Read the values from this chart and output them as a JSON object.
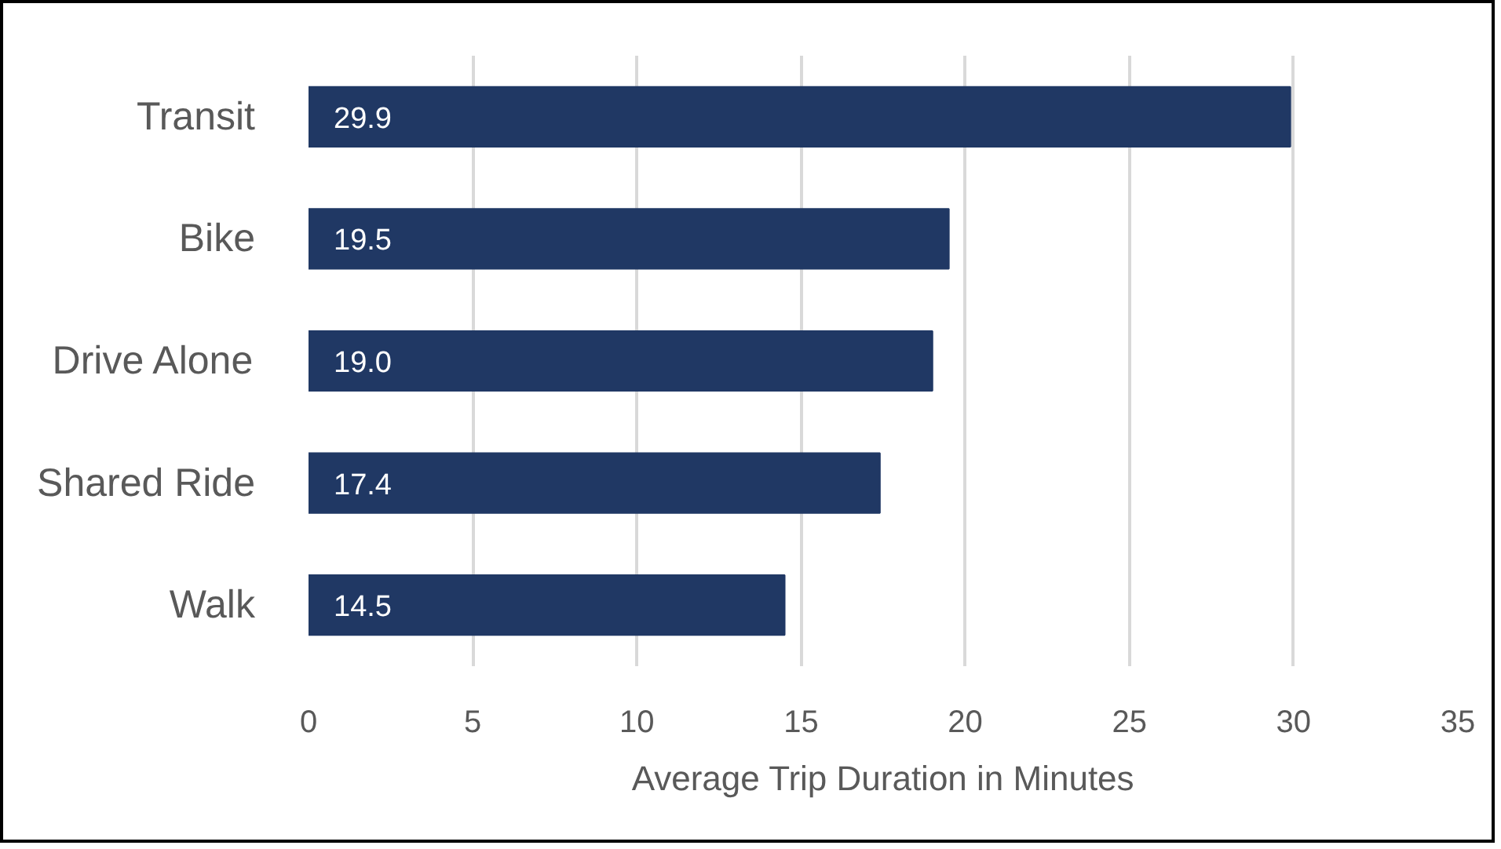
{
  "chart_data": {
    "type": "bar",
    "orientation": "horizontal",
    "categories": [
      "Transit",
      "Bike",
      "Drive Alone",
      "Shared Ride",
      "Walk"
    ],
    "values": [
      29.9,
      19.5,
      19.0,
      17.4,
      14.5
    ],
    "value_labels": [
      "29.9",
      "19.5",
      "19.0",
      "17.4",
      "14.5"
    ],
    "color": "#203864",
    "xlabel": "Average Trip Duration in Minutes",
    "xlim": [
      0,
      35
    ],
    "xticks": [
      0,
      5,
      10,
      15,
      20,
      25,
      30,
      35
    ],
    "grid": "x"
  }
}
